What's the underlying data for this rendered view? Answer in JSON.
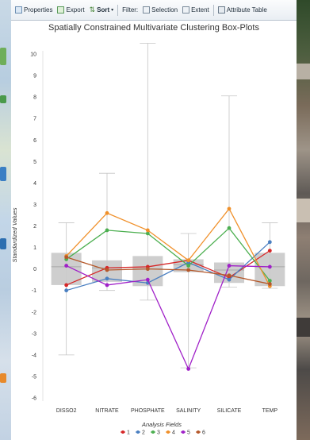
{
  "toolbar": {
    "properties": "Properties",
    "export": "Export",
    "sort": "Sort",
    "filter": "Filter:",
    "selection": "Selection",
    "extent": "Extent",
    "attribute_table": "Attribute Table"
  },
  "chart_data": {
    "type": "box-plot with lines",
    "title": "Spatially Constrained Multivariate Clustering Box-Plots",
    "xlabel": "Analysis Fields",
    "ylabel": "Standardized Values",
    "categories": [
      "DISSO2",
      "NITRATE",
      "PHOSPHATE",
      "SALINITY",
      "SILICATE",
      "TEMP"
    ],
    "ylim": [
      -6,
      10
    ],
    "yticks": [
      -6,
      -5,
      -4,
      -3,
      -2,
      -1,
      0,
      1,
      2,
      3,
      4,
      5,
      6,
      7,
      8,
      9,
      10
    ],
    "boxes": [
      {
        "min": -4.0,
        "q1": -0.75,
        "median": 0.1,
        "q3": 0.75,
        "max": 2.15
      },
      {
        "min": -1.0,
        "q1": -0.6,
        "median": 0.05,
        "q3": 0.4,
        "max": 4.45
      },
      {
        "min": -1.45,
        "q1": -0.8,
        "median": 0.0,
        "q3": 0.6,
        "max": 10.5
      },
      {
        "min": -4.6,
        "q1": -0.15,
        "median": 0.2,
        "q3": 0.45,
        "max": 1.65
      },
      {
        "min": -0.85,
        "q1": -0.65,
        "median": -0.05,
        "q3": 0.3,
        "max": 8.05
      },
      {
        "min": -0.9,
        "q1": -0.8,
        "median": 0.1,
        "q3": 0.75,
        "max": 2.15
      }
    ],
    "series": [
      {
        "name": "1",
        "color": "#d62728",
        "values": [
          -0.75,
          0.05,
          0.1,
          0.4,
          -0.4,
          0.85
        ]
      },
      {
        "name": "2",
        "color": "#4a7fc1",
        "values": [
          -1.0,
          -0.45,
          -0.65,
          0.3,
          -0.5,
          1.25
        ]
      },
      {
        "name": "3",
        "color": "#4caf50",
        "values": [
          0.45,
          1.8,
          1.65,
          0.15,
          1.9,
          -0.55
        ]
      },
      {
        "name": "4",
        "color": "#f0902a",
        "values": [
          0.6,
          2.6,
          1.8,
          0.4,
          2.8,
          -0.8
        ]
      },
      {
        "name": "5",
        "color": "#a020c8",
        "values": [
          0.15,
          -0.75,
          -0.5,
          -4.65,
          0.15,
          0.1
        ]
      },
      {
        "name": "6",
        "color": "#b5582a",
        "values": [
          0.55,
          -0.05,
          0.0,
          -0.05,
          -0.3,
          -0.7
        ]
      }
    ]
  }
}
